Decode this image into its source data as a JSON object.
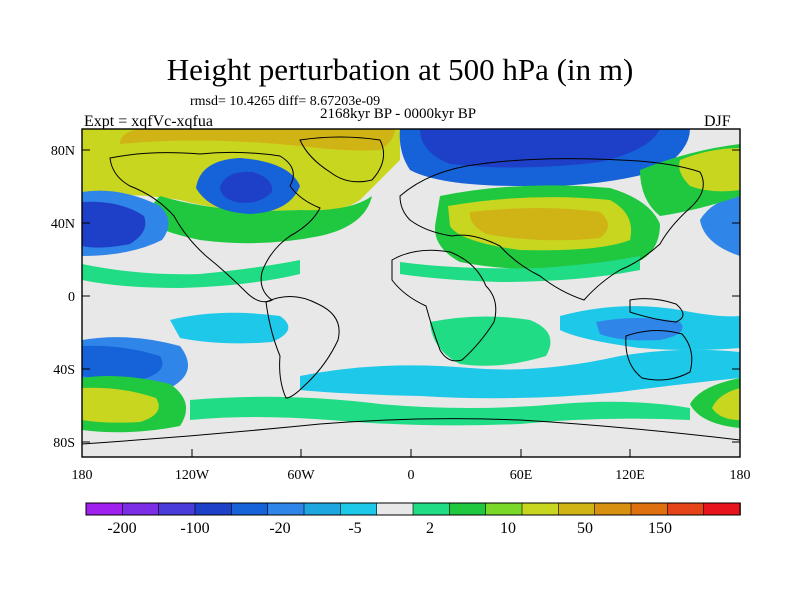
{
  "title": "Height perturbation at 500 hPa (in m)",
  "stats": "rmsd= 10.4265 diff= 8.67203e-09",
  "period": "2168kyr BP - 0000kyr BP",
  "experiment": "Expt = xqfVc-xqfua",
  "season": "DJF",
  "lat_ticks": [
    "80N",
    "40N",
    "0",
    "40S",
    "80S"
  ],
  "lon_ticks": [
    "180",
    "120W",
    "60W",
    "0",
    "60E",
    "120E",
    "180"
  ],
  "colorbar": {
    "colors": [
      "#a020f0",
      "#7b2ee6",
      "#4a3cd8",
      "#1e40c8",
      "#1662d8",
      "#2f86e8",
      "#1ea6e0",
      "#1ec8e8",
      "#e8e8e8",
      "#20dc84",
      "#20c840",
      "#7ad828",
      "#c8d620",
      "#d0b416",
      "#d89010",
      "#de7010",
      "#e44418",
      "#e8141c"
    ],
    "labels": [
      "-200",
      "-100",
      "-20",
      "-5",
      "2",
      "10",
      "50",
      "150"
    ]
  },
  "colors": {
    "background": "#ffffff",
    "neutral": "#e8e8e8",
    "coast": "#000000"
  }
}
